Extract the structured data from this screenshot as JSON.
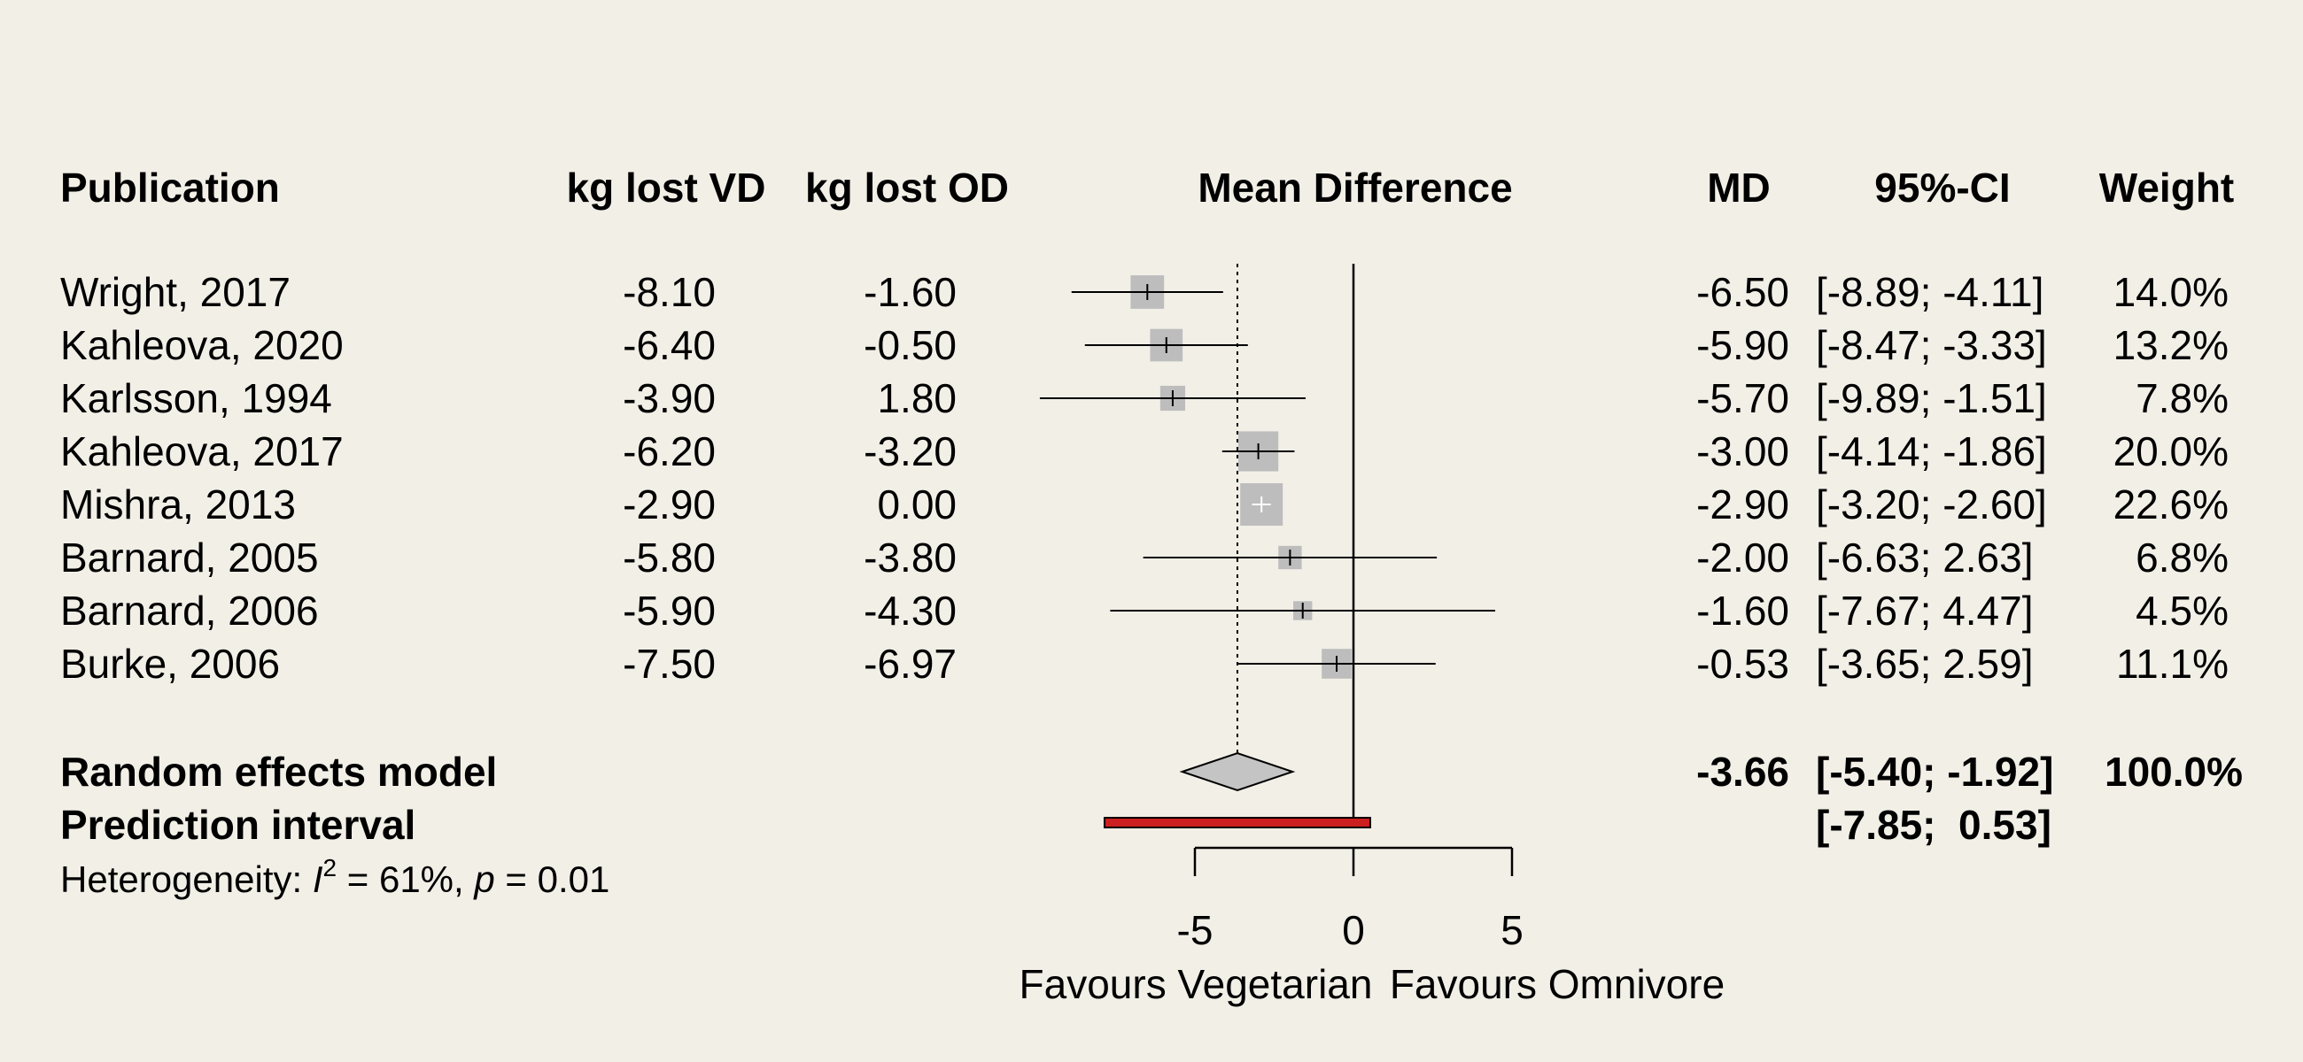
{
  "chart_data": {
    "type": "forest",
    "headers": {
      "publication": "Publication",
      "vd": "kg lost VD",
      "od": "kg lost OD",
      "plot": "Mean Difference",
      "md": "MD",
      "ci": "95%-CI",
      "weight": "Weight"
    },
    "studies": [
      {
        "name": "Wright, 2017",
        "vd": "-8.10",
        "od": "-1.60",
        "md": -6.5,
        "lo": -8.89,
        "hi": -4.11,
        "ci": "[-8.89; -4.11]",
        "md_text": "-6.50",
        "weight": "14.0%",
        "w": 14.0
      },
      {
        "name": "Kahleova, 2020",
        "vd": "-6.40",
        "od": "-0.50",
        "md": -5.9,
        "lo": -8.47,
        "hi": -3.33,
        "ci": "[-8.47; -3.33]",
        "md_text": "-5.90",
        "weight": "13.2%",
        "w": 13.2
      },
      {
        "name": "Karlsson, 1994",
        "vd": "-3.90",
        "od": "1.80",
        "md": -5.7,
        "lo": -9.89,
        "hi": -1.51,
        "ci": "[-9.89; -1.51]",
        "md_text": "-5.70",
        "weight": "7.8%",
        "w": 7.8
      },
      {
        "name": "Kahleova, 2017",
        "vd": "-6.20",
        "od": "-3.20",
        "md": -3.0,
        "lo": -4.14,
        "hi": -1.86,
        "ci": "[-4.14; -1.86]",
        "md_text": "-3.00",
        "weight": "20.0%",
        "w": 20.0
      },
      {
        "name": "Mishra, 2013",
        "vd": "-2.90",
        "od": "0.00",
        "md": -2.9,
        "lo": -3.2,
        "hi": -2.6,
        "ci": "[-3.20; -2.60]",
        "md_text": "-2.90",
        "weight": "22.6%",
        "w": 22.6
      },
      {
        "name": "Barnard, 2005",
        "vd": "-5.80",
        "od": "-3.80",
        "md": -2.0,
        "lo": -6.63,
        "hi": 2.63,
        "ci": "[-6.63;  2.63]",
        "md_text": "-2.00",
        "weight": "6.8%",
        "w": 6.8
      },
      {
        "name": "Barnard, 2006",
        "vd": "-5.90",
        "od": "-4.30",
        "md": -1.6,
        "lo": -7.67,
        "hi": 4.47,
        "ci": "[-7.67;  4.47]",
        "md_text": "-1.60",
        "weight": "4.5%",
        "w": 4.5
      },
      {
        "name": "Burke, 2006",
        "vd": "-7.50",
        "od": "-6.97",
        "md": -0.53,
        "lo": -3.65,
        "hi": 2.59,
        "ci": "[-3.65;  2.59]",
        "md_text": "-0.53",
        "weight": "11.1%",
        "w": 11.1
      }
    ],
    "random_effects": {
      "label": "Random effects model",
      "md": -3.66,
      "lo": -5.4,
      "hi": -1.92,
      "md_text": "-3.66",
      "ci": "[-5.40; -1.92]",
      "weight": "100.0%"
    },
    "prediction_interval": {
      "label": "Prediction interval",
      "lo": -7.85,
      "hi": 0.53,
      "ci": "[-7.85;  0.53]"
    },
    "heterogeneity": {
      "prefix": "Heterogeneity: ",
      "I": "I",
      "sup": "2",
      "mid": " = 61%, ",
      "p": "p",
      "suffix": " = 0.01"
    },
    "x_axis": {
      "range": [
        -5,
        5
      ],
      "ticks": [
        -5,
        0,
        5
      ],
      "tick_labels": [
        "-5",
        "0",
        "5"
      ],
      "left_label": "Favours Vegetarian",
      "right_label": "Favours Omnivore"
    },
    "colors": {
      "background": "#f2efe7",
      "square": "#bdbdbd",
      "diamond": "#c4c4c4",
      "prediction": "#cc1f1f"
    }
  }
}
